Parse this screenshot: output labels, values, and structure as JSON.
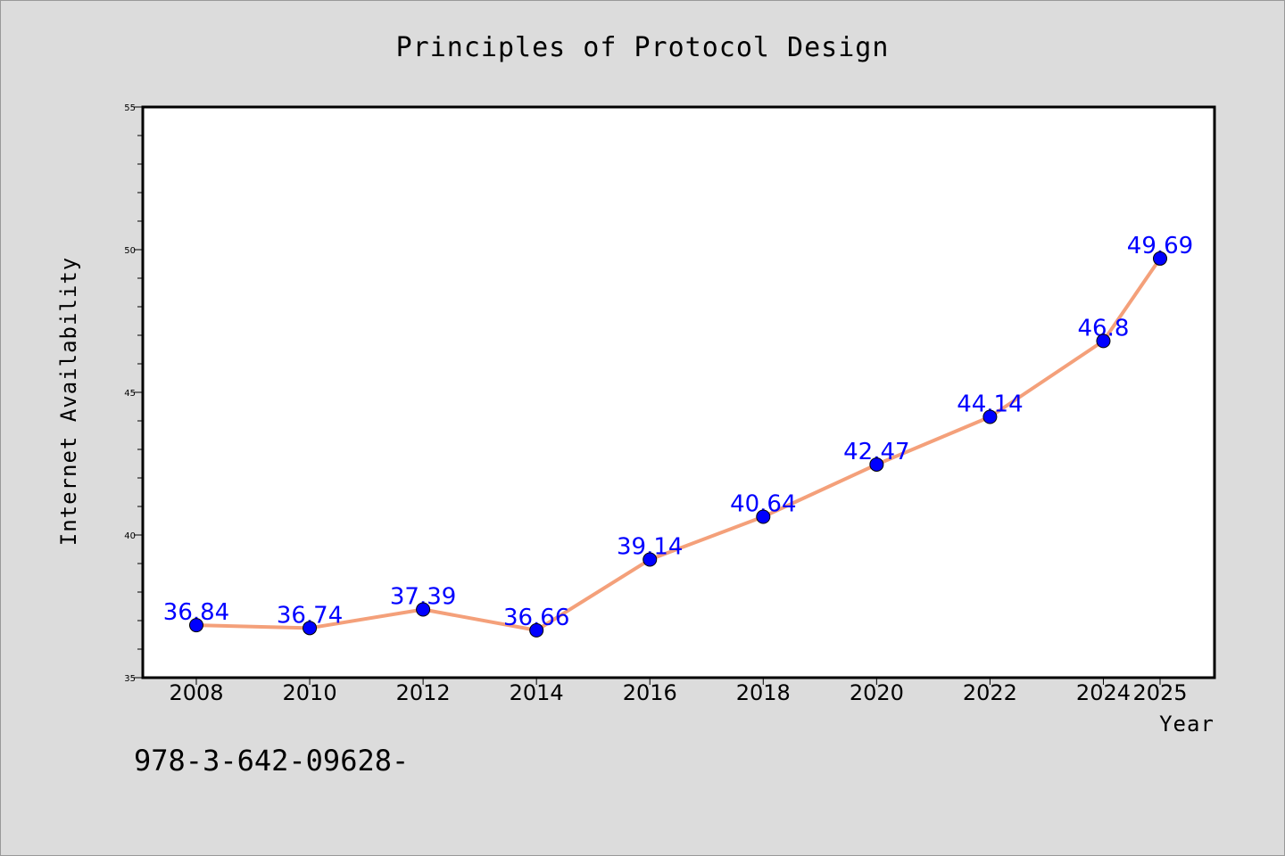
{
  "chart_data": {
    "type": "line",
    "title": "Principles of Protocol Design",
    "xlabel": "Year",
    "ylabel": "Internet Availability",
    "x": [
      "2008",
      "2010",
      "2012",
      "2014",
      "2016",
      "2018",
      "2020",
      "2022",
      "2024",
      "2025"
    ],
    "series": [
      {
        "values": [
          36.84,
          36.74,
          37.39,
          36.66,
          39.14,
          40.64,
          42.47,
          44.14,
          46.8,
          49.69
        ],
        "data_labels": [
          "36.84",
          "36.74",
          "37.39",
          "36.66",
          "39.14",
          "40.64",
          "42.47",
          "44.14",
          "46.8",
          "49.69"
        ],
        "line_color": "#f4a07a",
        "marker_color": "#0000ff"
      }
    ],
    "ylim": [
      35,
      55
    ],
    "yticks": [
      "35",
      "40",
      "45",
      "50",
      "55"
    ],
    "grid": false,
    "legend": "none"
  },
  "footer_text": "978-3-642-09628-",
  "colors": {
    "background": "#dcdcdc",
    "plot_area": "#ffffff",
    "data_label": "#0000ff"
  }
}
